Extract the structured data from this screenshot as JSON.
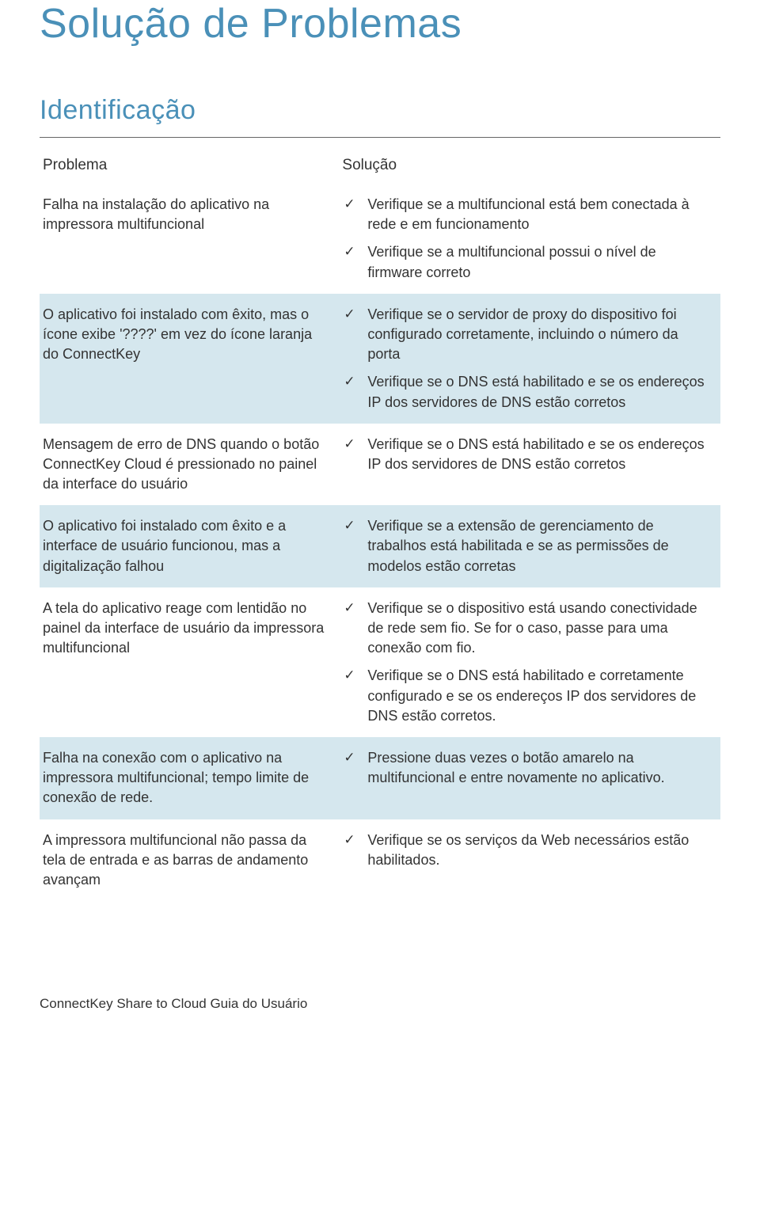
{
  "colors": {
    "heading": "#4a90b8",
    "text": "#333333",
    "row_shade": "#d5e7ee",
    "hr": "#666666",
    "background": "#ffffff"
  },
  "typography": {
    "title_fontsize": 52,
    "subtitle_fontsize": 34,
    "body_fontsize": 18,
    "header_fontsize": 19,
    "footer_fontsize": 17,
    "title_weight": 300,
    "body_weight": 300
  },
  "title": "Solução de Problemas",
  "subtitle": "Identificação",
  "table": {
    "headers": {
      "problem": "Problema",
      "solution": "Solução"
    },
    "rows": [
      {
        "shaded": false,
        "problem": "Falha na instalação do aplicativo na impressora multifuncional",
        "solutions": [
          "Verifique se a multifuncional está bem conectada à rede e em funcionamento",
          "Verifique se a multifuncional possui o nível de firmware correto"
        ]
      },
      {
        "shaded": true,
        "problem": "O aplicativo foi instalado com êxito, mas o ícone exibe '????' em vez do ícone laranja do ConnectKey",
        "solutions": [
          "Verifique se o servidor de proxy do dispositivo foi configurado corretamente, incluindo o número da porta",
          "Verifique se o DNS está habilitado e se os endereços IP dos servidores de DNS estão corretos"
        ]
      },
      {
        "shaded": false,
        "problem": "Mensagem de erro de DNS quando o botão ConnectKey Cloud é pressionado no painel da interface do usuário",
        "solutions": [
          "Verifique se o DNS está habilitado e se os endereços IP dos servidores de DNS estão corretos"
        ]
      },
      {
        "shaded": true,
        "problem": "O aplicativo foi instalado com êxito e a interface de usuário funcionou, mas a digitalização falhou",
        "solutions": [
          "Verifique se a extensão de gerenciamento de trabalhos está habilitada e se as permissões de modelos estão corretas"
        ]
      },
      {
        "shaded": false,
        "problem": "A tela do aplicativo reage com lentidão no painel da interface de usuário da impressora multifuncional",
        "solutions": [
          "Verifique se o dispositivo está usando conectividade de rede sem fio.  Se for o caso, passe para uma conexão com fio.",
          "Verifique se o DNS está habilitado e corretamente configurado e se os endereços IP dos servidores de DNS estão corretos."
        ]
      },
      {
        "shaded": true,
        "problem": "Falha na conexão com o aplicativo na impressora multifuncional; tempo limite de conexão de rede.",
        "solutions": [
          "Pressione duas vezes o botão amarelo na multifuncional e entre novamente no aplicativo."
        ]
      },
      {
        "shaded": false,
        "problem": "A impressora multifuncional não passa da tela de entrada e as barras de andamento avançam",
        "solutions": [
          "Verifique se os serviços da Web necessários estão habilitados."
        ]
      }
    ]
  },
  "footer": "ConnectKey Share to Cloud Guia do Usuário",
  "check_glyph": "✓"
}
